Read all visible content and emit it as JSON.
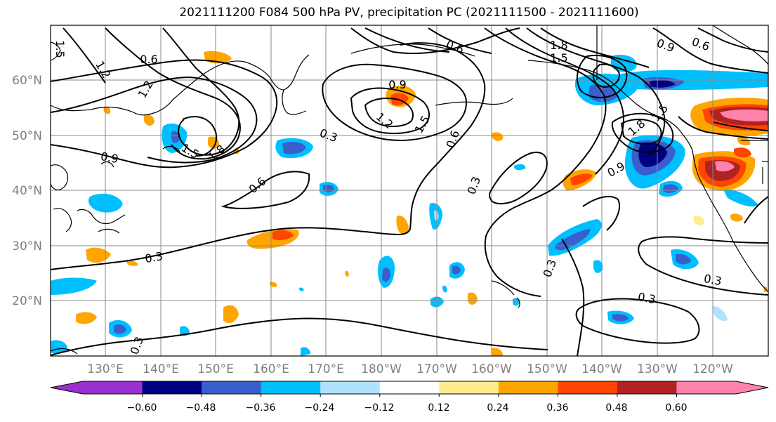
{
  "title": "2021111200 F084 500 hPa PV, precipitation PC (2021111500 - 2021111600)",
  "lat_labels": [
    "60°N",
    "50°N",
    "40°N",
    "30°N",
    "20°N"
  ],
  "lon_labels": [
    "130°E",
    "140°E",
    "150°E",
    "160°E",
    "170°E",
    "180°W",
    "170°W",
    "160°W",
    "150°W",
    "140°W",
    "130°W",
    "120°W"
  ],
  "contour_labels": [
    "0.6",
    "1.2",
    "1.5",
    "1.2",
    "0.9",
    "1.5",
    "1.8",
    "0.9",
    "0.3",
    "0.6",
    "0.9",
    "1.2",
    "1.5",
    "0.6",
    "0.3",
    "0.6",
    "1.8",
    "1.5",
    "0.9",
    "0.6",
    "0.9",
    "1.5",
    "1.8",
    "0.3",
    "0.3",
    "0.3",
    "0.3",
    "0.3"
  ],
  "colorbar": {
    "ticks": [
      "−0.60",
      "−0.48",
      "−0.36",
      "−0.24",
      "−0.12",
      "0.12",
      "0.24",
      "0.36",
      "0.48",
      "0.60"
    ],
    "colors": [
      "#9b30d0",
      "#000080",
      "#3a5fcd",
      "#00bfff",
      "#b0e2ff",
      "#ffffff",
      "#ffec8b",
      "#ffa500",
      "#ff4500",
      "#b22222",
      "#ff82ab",
      "#ff82ab"
    ]
  }
}
